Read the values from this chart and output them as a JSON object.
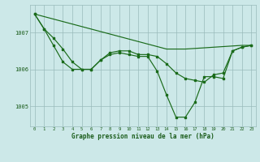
{
  "bg_color": "#cce8e8",
  "grid_color": "#99bbbb",
  "line_color": "#1a6b1a",
  "xlabel": "Graphe pression niveau de la mer (hPa)",
  "xlabel_color": "#1a5c1a",
  "xlim": [
    -0.5,
    23.5
  ],
  "ylim": [
    1004.45,
    1007.75
  ],
  "yticks": [
    1005,
    1006,
    1007
  ],
  "xticks": [
    0,
    1,
    2,
    3,
    4,
    5,
    6,
    7,
    8,
    9,
    10,
    11,
    12,
    13,
    14,
    15,
    16,
    17,
    18,
    19,
    20,
    21,
    22,
    23
  ],
  "line_straight_x": [
    0,
    14,
    16,
    22,
    23
  ],
  "line_straight_y": [
    1007.5,
    1006.55,
    1006.55,
    1006.65,
    1006.65
  ],
  "line_upper_x": [
    0,
    1,
    2,
    3,
    4,
    5,
    6,
    7,
    8,
    9,
    10,
    11,
    12,
    13,
    14,
    15,
    16,
    17,
    18,
    19,
    20,
    21,
    22,
    23
  ],
  "line_upper_y": [
    1007.5,
    1007.1,
    1006.85,
    1006.55,
    1006.2,
    1006.0,
    1006.0,
    1006.25,
    1006.45,
    1006.5,
    1006.5,
    1006.4,
    1006.4,
    1006.35,
    1006.15,
    1005.9,
    1005.75,
    1005.7,
    1005.65,
    1005.85,
    1005.9,
    1006.5,
    1006.6,
    1006.65
  ],
  "line_lower_x": [
    0,
    1,
    2,
    3,
    4,
    5,
    6,
    7,
    8,
    9,
    10,
    11,
    12,
    13,
    14,
    15,
    16,
    17,
    18,
    19,
    20,
    21,
    22,
    23
  ],
  "line_lower_y": [
    1007.5,
    1007.1,
    1006.65,
    1006.2,
    1006.0,
    1006.0,
    1006.0,
    1006.25,
    1006.4,
    1006.45,
    1006.4,
    1006.35,
    1006.35,
    1005.95,
    1005.3,
    1004.7,
    1004.7,
    1005.1,
    1005.8,
    1005.8,
    1005.75,
    1006.5,
    1006.6,
    1006.65
  ]
}
